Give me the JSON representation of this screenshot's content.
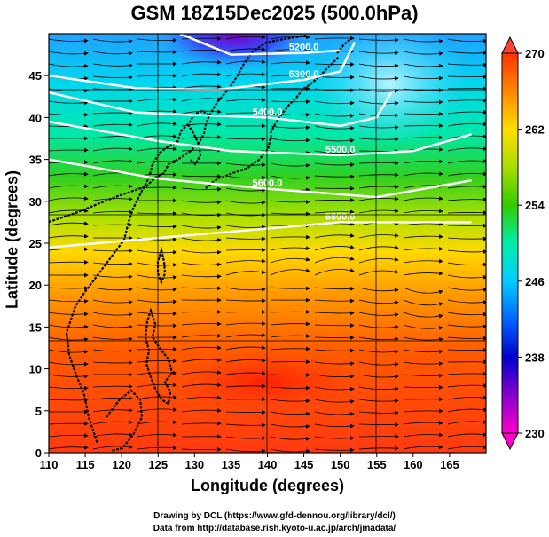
{
  "title": "GSM 18Z15Dec2025 (500.0hPa)",
  "xaxis": {
    "label": "Longitude (degrees)",
    "range": [
      110,
      170
    ],
    "ticks": [
      "110",
      "115",
      "120",
      "125",
      "130",
      "135",
      "140",
      "145",
      "150",
      "155",
      "160",
      "165"
    ],
    "tick_values": [
      110,
      115,
      120,
      125,
      130,
      135,
      140,
      145,
      150,
      155,
      160,
      165
    ]
  },
  "yaxis": {
    "label": "Latitude  (degrees)",
    "range": [
      0,
      50
    ],
    "ticks": [
      "0",
      "5",
      "10",
      "15",
      "20",
      "25",
      "30",
      "35",
      "40",
      "45"
    ],
    "tick_values": [
      0,
      5,
      10,
      15,
      20,
      25,
      30,
      35,
      40,
      45
    ]
  },
  "colorbar": {
    "ticks": [
      "230",
      "238",
      "246",
      "254",
      "262",
      "270"
    ],
    "tick_values": [
      230,
      238,
      246,
      254,
      262,
      270
    ],
    "min": 230,
    "max": 270,
    "stops": [
      "#ff00cc",
      "#8800cc",
      "#0000cc",
      "#0066ff",
      "#00ccff",
      "#00eeaa",
      "#33cc00",
      "#aadd00",
      "#ffdd00",
      "#ff8800",
      "#ff3300"
    ]
  },
  "contours": [
    {
      "label": "5200.0",
      "lat_at": [
        [
          128,
          50
        ],
        [
          135,
          47.5
        ],
        [
          145,
          47.7
        ],
        [
          150,
          48
        ]
      ]
    },
    {
      "label": "5300.0",
      "lat_at": [
        [
          110,
          45
        ],
        [
          122,
          43.5
        ],
        [
          133,
          43.3
        ],
        [
          145,
          44.5
        ],
        [
          150,
          45.5
        ],
        [
          152,
          49
        ]
      ]
    },
    {
      "label": "5400.0",
      "lat_at": [
        [
          110,
          43
        ],
        [
          122,
          40.6
        ],
        [
          130,
          40.3
        ],
        [
          140,
          40
        ],
        [
          150,
          39
        ],
        [
          155,
          40
        ],
        [
          157,
          43
        ]
      ]
    },
    {
      "label": "5500.0",
      "lat_at": [
        [
          110,
          39.5
        ],
        [
          125,
          37.2
        ],
        [
          135,
          36
        ],
        [
          150,
          35.5
        ],
        [
          160,
          36
        ],
        [
          168,
          38
        ]
      ]
    },
    {
      "label": "5600.0",
      "lat_at": [
        [
          110,
          35
        ],
        [
          125,
          32.7
        ],
        [
          140,
          31.5
        ],
        [
          155,
          30.5
        ],
        [
          168,
          32.5
        ]
      ]
    },
    {
      "label": "5800.0",
      "lat_at": [
        [
          110,
          24.5
        ],
        [
          130,
          26
        ],
        [
          150,
          27.5
        ],
        [
          168,
          27.5
        ]
      ]
    }
  ],
  "contour_labels_shown": [
    "5200.0",
    "5300.0",
    "5400.0",
    "5500.0",
    "5600.0",
    "5800.0"
  ],
  "field": "Temperature (K) with geopotential height contours and wind streamlines",
  "credits": {
    "line1": "Drawing by DCL (https://www.gfd-dennou.org/library/dcl/)",
    "line2": "Data from http://database.rish.kyoto-u.ac.jp/arch/jmadata/"
  }
}
